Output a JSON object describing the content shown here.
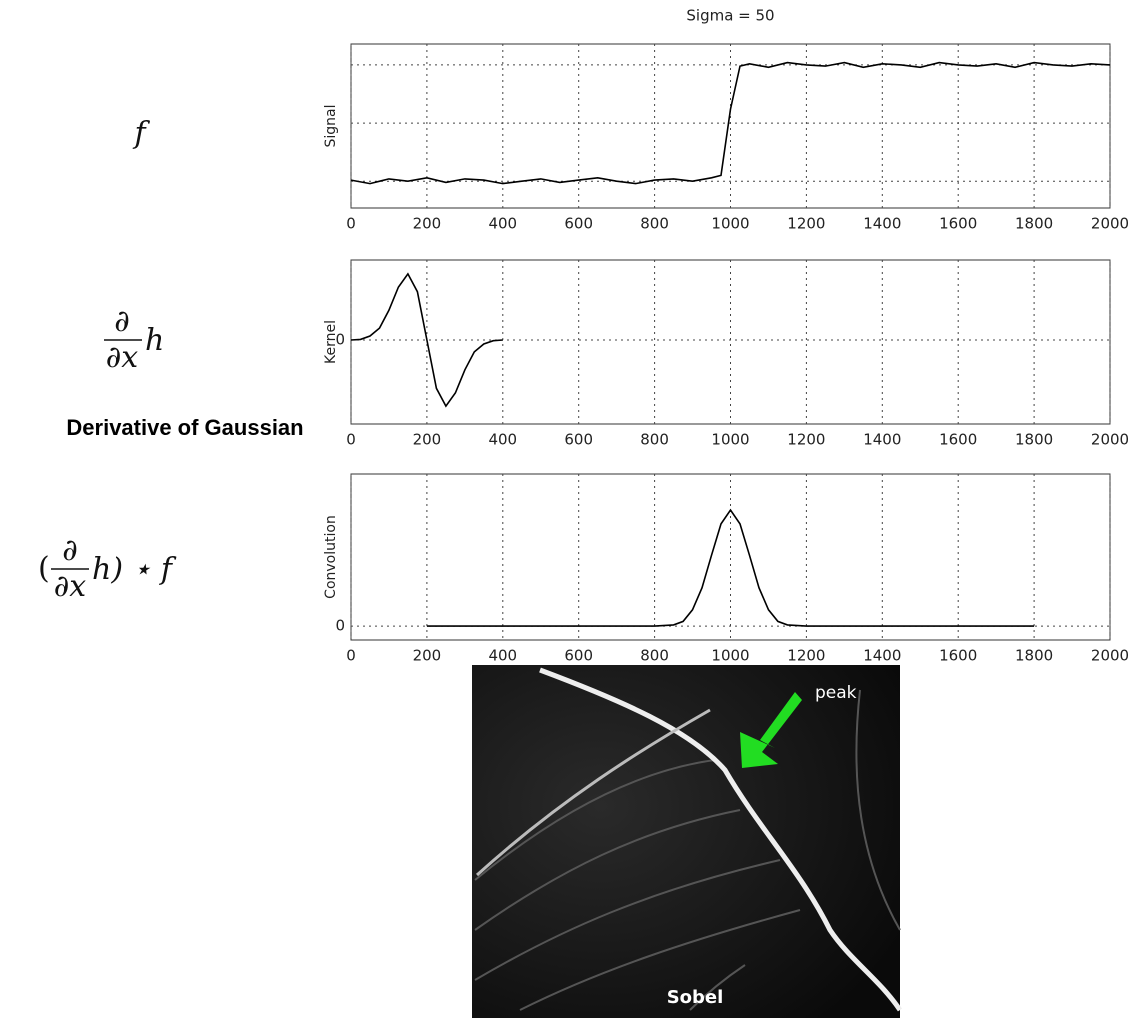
{
  "slide": {
    "heading": "Derivative of Gaussian",
    "formula_1": {
      "symbol": "f"
    },
    "formula_2": {
      "numerator": "∂",
      "denominator": "∂x",
      "suffix": "h"
    },
    "formula_3": {
      "prefix": "(",
      "numerator": "∂",
      "denominator": "∂x",
      "suffix": "h) ⋆ f"
    },
    "image": {
      "annotation": "peak",
      "caption": "Sobel"
    }
  },
  "chart_data": [
    {
      "type": "line",
      "title": "Sigma = 50",
      "ylabel": "Signal",
      "color": "#000000",
      "x": [
        0,
        50,
        100,
        150,
        200,
        250,
        300,
        350,
        400,
        450,
        500,
        550,
        600,
        650,
        700,
        750,
        800,
        850,
        900,
        950,
        975,
        1000,
        1025,
        1050,
        1100,
        1150,
        1200,
        1250,
        1300,
        1350,
        1400,
        1450,
        1500,
        1550,
        1600,
        1650,
        1700,
        1750,
        1800,
        1850,
        1900,
        1950,
        2000
      ],
      "values": [
        0.01,
        -0.02,
        0.02,
        0.0,
        0.03,
        -0.01,
        0.02,
        0.01,
        -0.02,
        0.0,
        0.02,
        -0.01,
        0.01,
        0.03,
        0.0,
        -0.02,
        0.01,
        0.02,
        0.0,
        0.03,
        0.05,
        0.62,
        0.99,
        1.01,
        0.98,
        1.02,
        1.0,
        0.99,
        1.02,
        0.98,
        1.01,
        1.0,
        0.98,
        1.02,
        1.0,
        0.99,
        1.01,
        0.98,
        1.02,
        1.0,
        0.99,
        1.01,
        1.0
      ],
      "xlim": [
        0,
        2000
      ],
      "ylim": [
        -0.23,
        1.18
      ],
      "xticks": [
        0,
        200,
        400,
        600,
        800,
        1000,
        1200,
        1400,
        1600,
        1800,
        2000
      ],
      "yticks": [
        0,
        0.5,
        1
      ],
      "ytick_labels": false,
      "grid": true
    },
    {
      "type": "line",
      "ylabel": "Kernel",
      "color": "#000000",
      "x": [
        0,
        25,
        50,
        75,
        100,
        125,
        150,
        175,
        200,
        225,
        250,
        275,
        300,
        325,
        350,
        375,
        400
      ],
      "values": [
        0.0,
        0.01,
        0.06,
        0.18,
        0.45,
        0.8,
        1.0,
        0.73,
        0,
        -0.73,
        -1.0,
        -0.8,
        -0.45,
        -0.18,
        -0.06,
        -0.01,
        0.0
      ],
      "xlim": [
        0,
        2000
      ],
      "ylim": [
        -1.27,
        1.21
      ],
      "xticks": [
        0,
        200,
        400,
        600,
        800,
        1000,
        1200,
        1400,
        1600,
        1800,
        2000
      ],
      "yticks": [
        0
      ],
      "grid": true
    },
    {
      "type": "line",
      "ylabel": "Convolution",
      "color": "#000000",
      "x": [
        200,
        400,
        600,
        800,
        850,
        875,
        900,
        925,
        950,
        975,
        1000,
        1025,
        1050,
        1075,
        1100,
        1125,
        1150,
        1200,
        1400,
        1600,
        1800
      ],
      "values": [
        0,
        0,
        0,
        0,
        0.01,
        0.04,
        0.14,
        0.33,
        0.61,
        0.88,
        1.0,
        0.88,
        0.61,
        0.33,
        0.14,
        0.04,
        0.01,
        0,
        0,
        0,
        0
      ],
      "xlim": [
        0,
        2000
      ],
      "ylim": [
        -0.12,
        1.31
      ],
      "xticks": [
        0,
        200,
        400,
        600,
        800,
        1000,
        1200,
        1400,
        1600,
        1800,
        2000
      ],
      "yticks": [
        0
      ],
      "grid": true
    }
  ]
}
